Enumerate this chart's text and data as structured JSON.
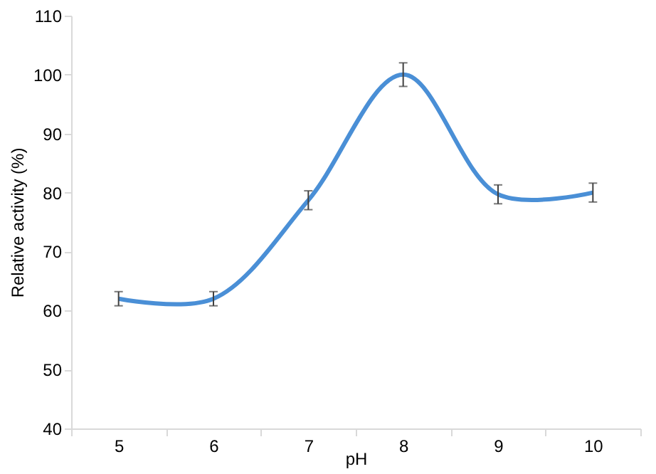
{
  "chart_data": {
    "type": "line",
    "xlabel": "pH",
    "ylabel": "Relative activity (%)",
    "categories": [
      "5",
      "6",
      "7",
      "8",
      "9",
      "10"
    ],
    "series": [
      {
        "color": "#4a8fd6",
        "values": [
          62.0,
          62.0,
          78.7,
          100.0,
          79.7,
          80.0
        ],
        "errors": [
          1.2,
          1.2,
          1.6,
          2.0,
          1.6,
          1.6
        ]
      }
    ],
    "ylim": [
      40,
      110
    ],
    "yticks": [
      40,
      50,
      60,
      70,
      80,
      90,
      100,
      110
    ],
    "grid": false,
    "marker": "none",
    "line_style": "solid"
  }
}
